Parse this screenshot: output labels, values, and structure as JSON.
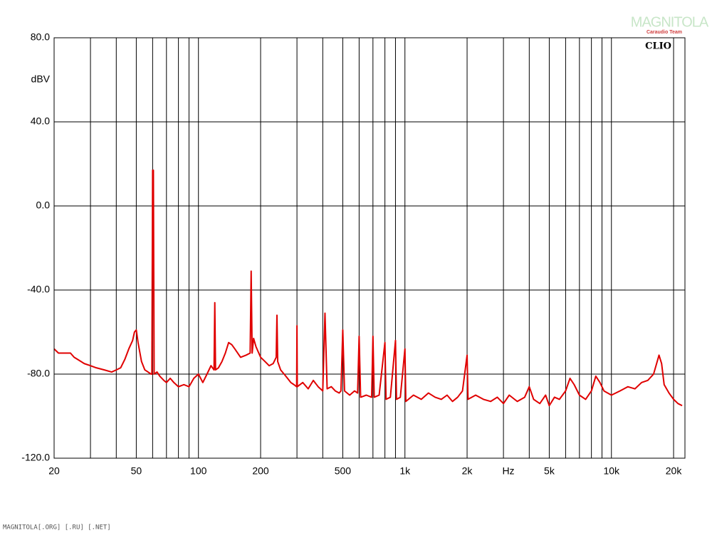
{
  "chart_data": {
    "type": "line",
    "brand": "CLIO",
    "logo": "MAGNITOLA",
    "logo_sub": "Caraudio Team",
    "footer": "MAGNITOLA[.ORG] [.RU] [.NET]",
    "x_label": "Hz",
    "y_label": "dBV",
    "xscale": "log",
    "grid": true,
    "xlim": [
      20,
      22700
    ],
    "ylim": [
      -120,
      80
    ],
    "yticks": [
      {
        "value": 80,
        "label": "80.0"
      },
      {
        "value": 40,
        "label": "40.0"
      },
      {
        "value": 0,
        "label": "0.0"
      },
      {
        "value": -40,
        "label": "-40.0"
      },
      {
        "value": -80,
        "label": "-80.0"
      },
      {
        "value": -120,
        "label": "-120.0"
      }
    ],
    "xticks": [
      20,
      50,
      100,
      200,
      500,
      {
        "value": 1000,
        "label": "1k"
      },
      {
        "value": 2000,
        "label": "2k"
      },
      {
        "value": 5000,
        "label": "5k"
      },
      {
        "value": 10000,
        "label": "10k"
      },
      {
        "value": 20000,
        "label": "20k"
      }
    ],
    "xgrid": [
      30,
      40,
      50,
      60,
      70,
      80,
      90,
      100,
      200,
      300,
      400,
      500,
      600,
      700,
      800,
      900,
      1000,
      2000,
      3000,
      4000,
      5000,
      6000,
      7000,
      8000,
      9000,
      10000,
      20000
    ],
    "series": [
      {
        "color": "#e00000",
        "x": [
          20,
          21,
          22,
          24,
          25,
          26,
          28,
          30,
          32,
          35,
          38,
          40,
          42,
          44,
          46,
          48,
          49,
          50,
          51,
          53,
          55,
          57,
          59,
          59.5,
          60,
          60.5,
          61,
          63,
          65,
          68,
          70,
          73,
          76,
          80,
          85,
          90,
          95,
          100,
          105,
          110,
          115,
          119,
          120,
          121,
          125,
          130,
          135,
          140,
          145,
          150,
          160,
          170,
          178,
          180,
          182,
          185,
          190,
          200,
          210,
          220,
          230,
          238,
          240,
          242,
          250,
          260,
          270,
          280,
          290,
          299,
          300,
          301,
          320,
          340,
          360,
          380,
          400,
          410,
          420,
          440,
          460,
          480,
          490,
          500,
          510,
          540,
          570,
          590,
          600,
          610,
          650,
          690,
          700,
          710,
          750,
          800,
          810,
          850,
          900,
          910,
          950,
          1000,
          1010,
          1100,
          1200,
          1300,
          1400,
          1500,
          1600,
          1700,
          1800,
          1900,
          2000,
          2020,
          2200,
          2400,
          2600,
          2800,
          3000,
          3200,
          3500,
          3800,
          4000,
          4200,
          4500,
          4800,
          5000,
          5300,
          5600,
          6000,
          6300,
          6600,
          7000,
          7500,
          8000,
          8400,
          8800,
          9200,
          10000,
          11000,
          12000,
          13000,
          14000,
          15000,
          16000,
          17000,
          17500,
          18000,
          19000,
          20000,
          21000,
          22000
        ],
        "values": [
          -68,
          -70,
          -70,
          -70,
          -72,
          -73,
          -75,
          -76,
          -77,
          -78,
          -79,
          -78,
          -77,
          -73,
          -68,
          -64,
          -60,
          -59,
          -65,
          -74,
          -78,
          -79,
          -80,
          -80,
          17,
          17,
          -80,
          -79,
          -81,
          -83,
          -84,
          -82,
          -84,
          -86,
          -85,
          -86,
          -82,
          -80,
          -84,
          -80,
          -76,
          -78,
          -46,
          -78,
          -77,
          -74,
          -70,
          -65,
          -66,
          -68,
          -72,
          -71,
          -70,
          -31,
          -70,
          -63,
          -67,
          -72,
          -74,
          -76,
          -75,
          -72,
          -52,
          -74,
          -78,
          -80,
          -82,
          -84,
          -85,
          -86,
          -57,
          -86,
          -84,
          -87,
          -83,
          -86,
          -88,
          -51,
          -87,
          -86,
          -88,
          -89,
          -88,
          -59,
          -88,
          -90,
          -88,
          -89,
          -62,
          -91,
          -90,
          -91,
          -62,
          -91,
          -90,
          -65,
          -92,
          -91,
          -64,
          -92,
          -91,
          -68,
          -93,
          -90,
          -92,
          -89,
          -91,
          -92,
          -90,
          -93,
          -91,
          -88,
          -71,
          -92,
          -90,
          -92,
          -93,
          -91,
          -94,
          -90,
          -93,
          -91,
          -86,
          -92,
          -94,
          -90,
          -95,
          -91,
          -92,
          -88,
          -82,
          -85,
          -90,
          -92,
          -88,
          -81,
          -84,
          -88,
          -90,
          -88,
          -86,
          -87,
          -84,
          -83,
          -80,
          -71,
          -75,
          -85,
          -89,
          -92,
          -94,
          -95
        ]
      }
    ]
  }
}
